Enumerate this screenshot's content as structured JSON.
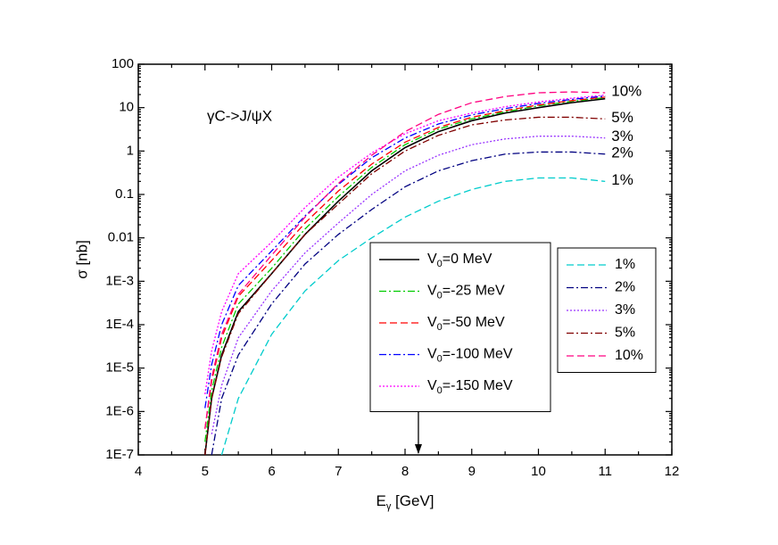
{
  "chart_data": {
    "type": "line",
    "annotation": "γC->J/ψX",
    "x_label": "Eγ [GeV]",
    "y_label": "σ [nb]",
    "log_y": true,
    "xlim": [
      4,
      12
    ],
    "xticks": [
      4,
      5,
      6,
      7,
      8,
      9,
      10,
      11,
      12
    ],
    "ylim": [
      1e-07,
      100
    ],
    "yticks": [
      {
        "value": 1e-07,
        "label": "1E-7"
      },
      {
        "value": 1e-06,
        "label": "1E-6"
      },
      {
        "value": 1e-05,
        "label": "1E-5"
      },
      {
        "value": 0.0001,
        "label": "1E-4"
      },
      {
        "value": 0.001,
        "label": "1E-3"
      },
      0.01,
      0.1,
      1,
      10,
      100
    ],
    "arrow_x": 8.2,
    "x": [
      5,
      5.1,
      5.25,
      5.5,
      6,
      6.5,
      7,
      7.5,
      8,
      8.5,
      9,
      9.5,
      10,
      10.5,
      11
    ],
    "series": [
      {
        "name": "V0=0 MeV",
        "color": "#000000",
        "style": "solid",
        "values": [
          1e-07,
          2e-06,
          2e-05,
          0.0002,
          0.0015,
          0.012,
          0.07,
          0.35,
          1.2,
          2.8,
          5,
          7.5,
          10,
          13,
          16
        ]
      },
      {
        "name": "V0=-25 MeV",
        "color": "#00cc00",
        "style": "dash-dot",
        "values": [
          2e-07,
          3e-06,
          3e-05,
          0.0003,
          0.002,
          0.016,
          0.09,
          0.42,
          1.4,
          3.2,
          5.5,
          8,
          11,
          14,
          17
        ]
      },
      {
        "name": "V0=-50 MeV",
        "color": "#ff0000",
        "style": "dash",
        "values": [
          4e-07,
          5e-06,
          5e-05,
          0.00045,
          0.003,
          0.022,
          0.12,
          0.5,
          1.6,
          3.5,
          6,
          8.5,
          11.5,
          14.5,
          17.5
        ]
      },
      {
        "name": "V0=-100 MeV",
        "color": "#0000ff",
        "style": "dash-dot",
        "values": [
          1.2e-06,
          1.2e-05,
          0.0001,
          0.0008,
          0.005,
          0.032,
          0.17,
          0.7,
          2,
          4.2,
          6.8,
          9.5,
          12.5,
          15.5,
          18.5
        ]
      },
      {
        "name": "V0=-150 MeV",
        "color": "#ff00ff",
        "style": "dot",
        "values": [
          2.5e-06,
          2.5e-05,
          0.0002,
          0.0015,
          0.008,
          0.05,
          0.25,
          0.9,
          2.5,
          5,
          7.5,
          10.5,
          13.5,
          16.5,
          19.5
        ]
      }
    ],
    "series_b": [
      {
        "name": "1%",
        "end_label": "1%",
        "color": "#00cccc",
        "style": "dash",
        "values": [
          null,
          null,
          1e-07,
          2e-06,
          6e-05,
          0.0006,
          0.003,
          0.01,
          0.03,
          0.07,
          0.13,
          0.2,
          0.24,
          0.24,
          0.2
        ]
      },
      {
        "name": "2%",
        "end_label": "2%",
        "color": "#000080",
        "style": "dash-dot",
        "values": [
          null,
          1e-07,
          2e-06,
          2e-05,
          0.0003,
          0.0025,
          0.012,
          0.045,
          0.15,
          0.35,
          0.6,
          0.85,
          0.95,
          0.95,
          0.85
        ]
      },
      {
        "name": "3%",
        "end_label": "3%",
        "color": "#9933ff",
        "style": "dot",
        "values": [
          null,
          3e-07,
          4e-06,
          5e-05,
          0.0006,
          0.0045,
          0.022,
          0.1,
          0.35,
          0.8,
          1.4,
          1.9,
          2.2,
          2.2,
          2
        ]
      },
      {
        "name": "5%",
        "end_label": "5%",
        "color": "#800000",
        "style": "dash-dot",
        "values": [
          1e-07,
          2e-06,
          1.8e-05,
          0.00018,
          0.0015,
          0.012,
          0.06,
          0.3,
          1,
          2.3,
          4,
          5.2,
          6,
          6,
          5.5
        ]
      },
      {
        "name": "10%",
        "end_label": "10%",
        "color": "#ff0080",
        "style": "dash",
        "values": [
          4e-07,
          6e-06,
          6e-05,
          0.0005,
          0.004,
          0.03,
          0.18,
          0.8,
          2.8,
          7,
          13,
          18,
          22,
          23,
          22
        ]
      }
    ]
  }
}
